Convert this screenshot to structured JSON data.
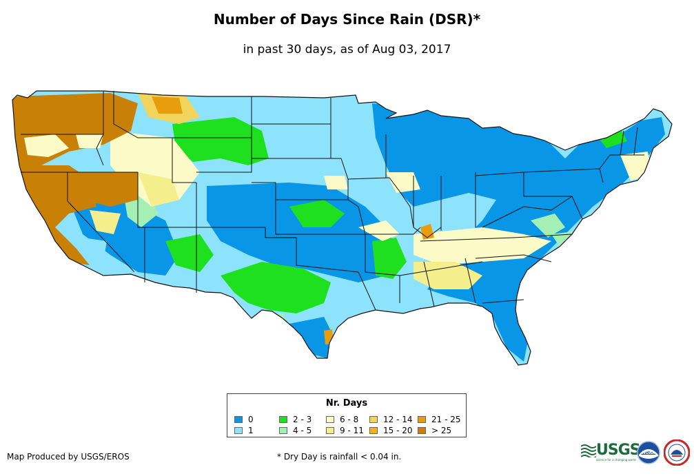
{
  "title": "Number of Days Since Rain (DSR)*",
  "subtitle": "in past 30 days, as of Aug 03, 2017",
  "legend": {
    "title": "Nr. Days",
    "items": [
      {
        "label": "0",
        "color": "#0a96e6"
      },
      {
        "label": "1",
        "color": "#8de3fb"
      },
      {
        "label": "2 - 3",
        "color": "#1fe01f"
      },
      {
        "label": "4 - 5",
        "color": "#a4f0b4"
      },
      {
        "label": "6 - 8",
        "color": "#fcfbc8"
      },
      {
        "label": "9 - 11",
        "color": "#f4ef8c"
      },
      {
        "label": "12 - 14",
        "color": "#f2d45c"
      },
      {
        "label": "15 - 20",
        "color": "#f2b21a"
      },
      {
        "label": "21 - 25",
        "color": "#e89e0c"
      },
      {
        "label": "> 25",
        "color": "#c98006"
      }
    ]
  },
  "credit": "Map Produced by USGS/EROS",
  "footnote": "* Dry Day is rainfall < 0.04 in.",
  "logos": {
    "usgs": {
      "text": "USGS",
      "tagline": "science for a changing world"
    },
    "noaa": {
      "text": "NOAA"
    }
  }
}
